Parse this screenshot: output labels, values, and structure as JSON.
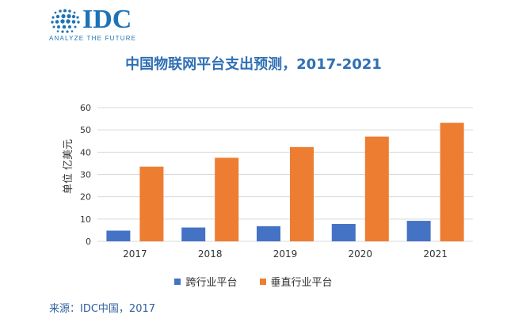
{
  "header": {
    "logo_text": "IDC",
    "logo_tagline": "ANALYZE THE FUTURE"
  },
  "colors": {
    "brand": "#1e73b6",
    "title": "#2f6fb5",
    "series_cross": "#4472c4",
    "series_vertical": "#ed7d31",
    "grid": "#d9d9d9"
  },
  "chart_data": {
    "type": "bar",
    "title": "中国物联网平台支出预测，2017-2021",
    "ylabel": "单位   亿美元",
    "xlabel": "",
    "categories": [
      "2017",
      "2018",
      "2019",
      "2020",
      "2021"
    ],
    "ylim": [
      0,
      60
    ],
    "yticks": [
      0,
      10,
      20,
      30,
      40,
      50,
      60
    ],
    "grid": true,
    "legend_position": "bottom",
    "series": [
      {
        "name": "跨行业平台",
        "values": [
          4.8,
          6.2,
          6.8,
          7.8,
          9.2
        ]
      },
      {
        "name": "垂直行业平台",
        "values": [
          33.5,
          37.5,
          42.3,
          47.0,
          53.2
        ]
      }
    ]
  },
  "footer": {
    "source": "来源：IDC中国，2017"
  }
}
